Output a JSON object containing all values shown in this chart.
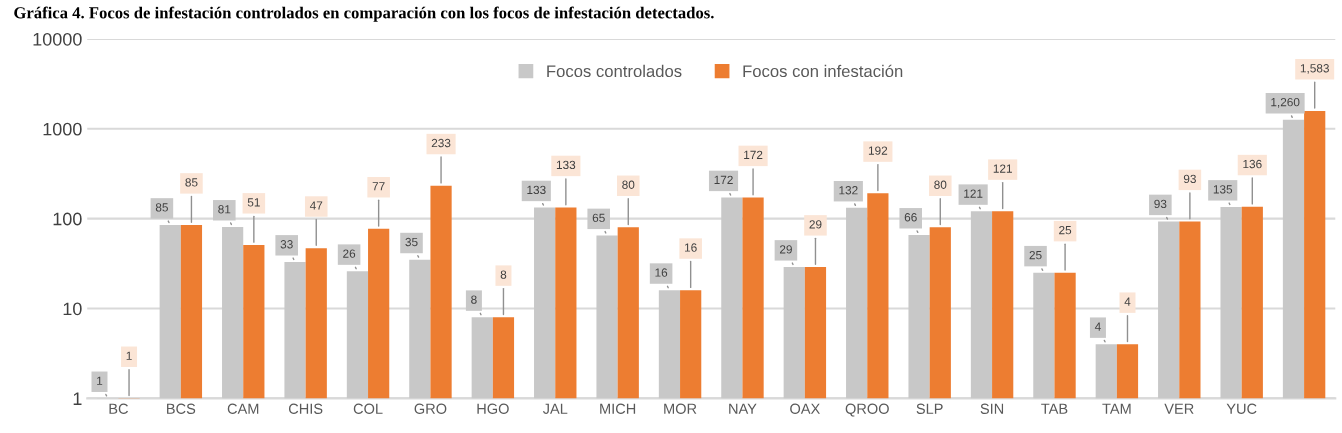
{
  "chart_data": {
    "type": "bar",
    "title": "Gráfica 4. Focos de infestación controlados en comparación con los focos de infestación detectados.",
    "categories": [
      "BC",
      "BCS",
      "CAM",
      "CHIS",
      "COL",
      "GRO",
      "HGO",
      "JAL",
      "MICH",
      "MOR",
      "NAY",
      "OAX",
      "QROO",
      "SLP",
      "SIN",
      "TAB",
      "TAM",
      "VER",
      "YUC",
      null
    ],
    "series": [
      {
        "name": "Focos controlados",
        "color": "#c8c8c8",
        "values": [
          1,
          85,
          81,
          33,
          26,
          35,
          8,
          133,
          65,
          16,
          172,
          29,
          132,
          66,
          121,
          25,
          4,
          93,
          135,
          1260
        ],
        "value_labels": [
          "1",
          "85",
          "81",
          "33",
          "26",
          "35",
          "8",
          "133",
          "65",
          "16",
          "172",
          "29",
          "132",
          "66",
          "121",
          "25",
          "4",
          "93",
          "135",
          "1,260"
        ]
      },
      {
        "name": "Focos con infestación",
        "color": "#ed7d31",
        "values": [
          1,
          85,
          51,
          47,
          77,
          233,
          8,
          133,
          80,
          16,
          172,
          29,
          192,
          80,
          121,
          25,
          4,
          93,
          136,
          1583
        ],
        "value_labels": [
          "1",
          "85",
          "51",
          "47",
          "77",
          "233",
          "8",
          "133",
          "80",
          "16",
          "172",
          "29",
          "192",
          "80",
          "121",
          "25",
          "4",
          "93",
          "136",
          "1,583"
        ]
      }
    ],
    "log": "y",
    "ylim": [
      1,
      10000
    ],
    "yticks": [
      1,
      10,
      100,
      1000,
      10000
    ],
    "grid": "y",
    "legend": "top"
  }
}
